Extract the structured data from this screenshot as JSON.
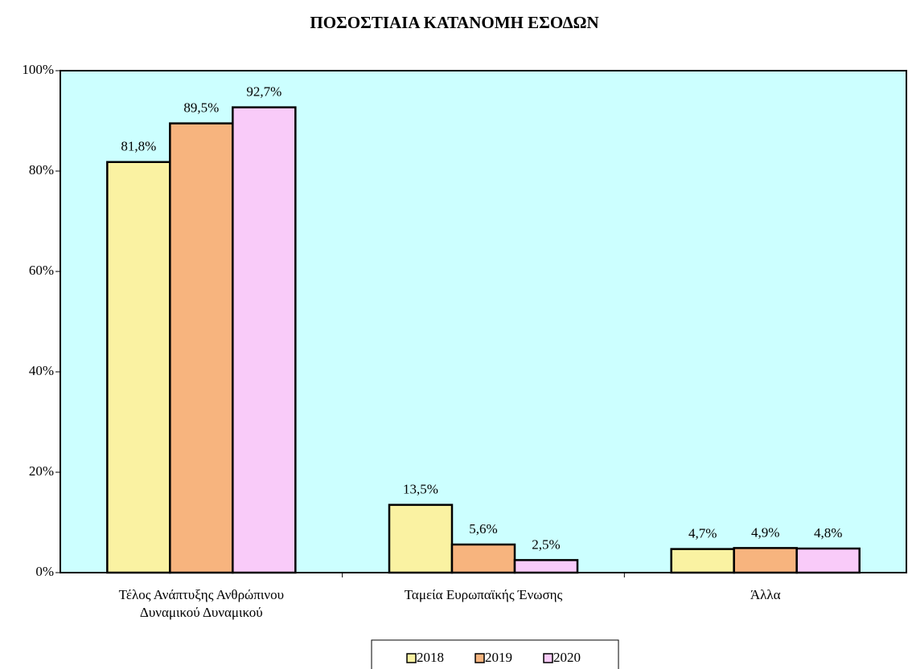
{
  "chart_data": {
    "type": "bar",
    "title": "ΠΟΣΟΣΤΙΑΙΑ ΚΑΤΑΝΟΜΗ ΕΣΟΔΩΝ",
    "categories": [
      "Τέλος Ανάπτυξης Ανθρώπινου Δυναμικού Δυναμικού",
      "Ταμεία Ευρωπαϊκής Ένωσης",
      "Άλλα"
    ],
    "series": [
      {
        "name": "2018",
        "color": "#faf2a2",
        "values": [
          81.8,
          13.5,
          4.7
        ],
        "value_labels": [
          "81,8%",
          "13,5%",
          "4,7%"
        ]
      },
      {
        "name": "2019",
        "color": "#f7b47e",
        "values": [
          89.5,
          5.6,
          4.9
        ],
        "value_labels": [
          "89,5%",
          "5,6%",
          "4,9%"
        ]
      },
      {
        "name": "2020",
        "color": "#f9cbf9",
        "values": [
          92.7,
          2.5,
          4.8
        ],
        "value_labels": [
          "92,7%",
          "2,5%",
          "4,8%"
        ]
      }
    ],
    "ylim": [
      0,
      100
    ],
    "yticks": [
      {
        "value": 0,
        "label": "0%"
      },
      {
        "value": 20,
        "label": "20%"
      },
      {
        "value": 40,
        "label": "40%"
      },
      {
        "value": 60,
        "label": "60%"
      },
      {
        "value": 80,
        "label": "80%"
      },
      {
        "value": 100,
        "label": "100%"
      }
    ],
    "plot_background": "#ccffff",
    "legend": "bottom"
  }
}
